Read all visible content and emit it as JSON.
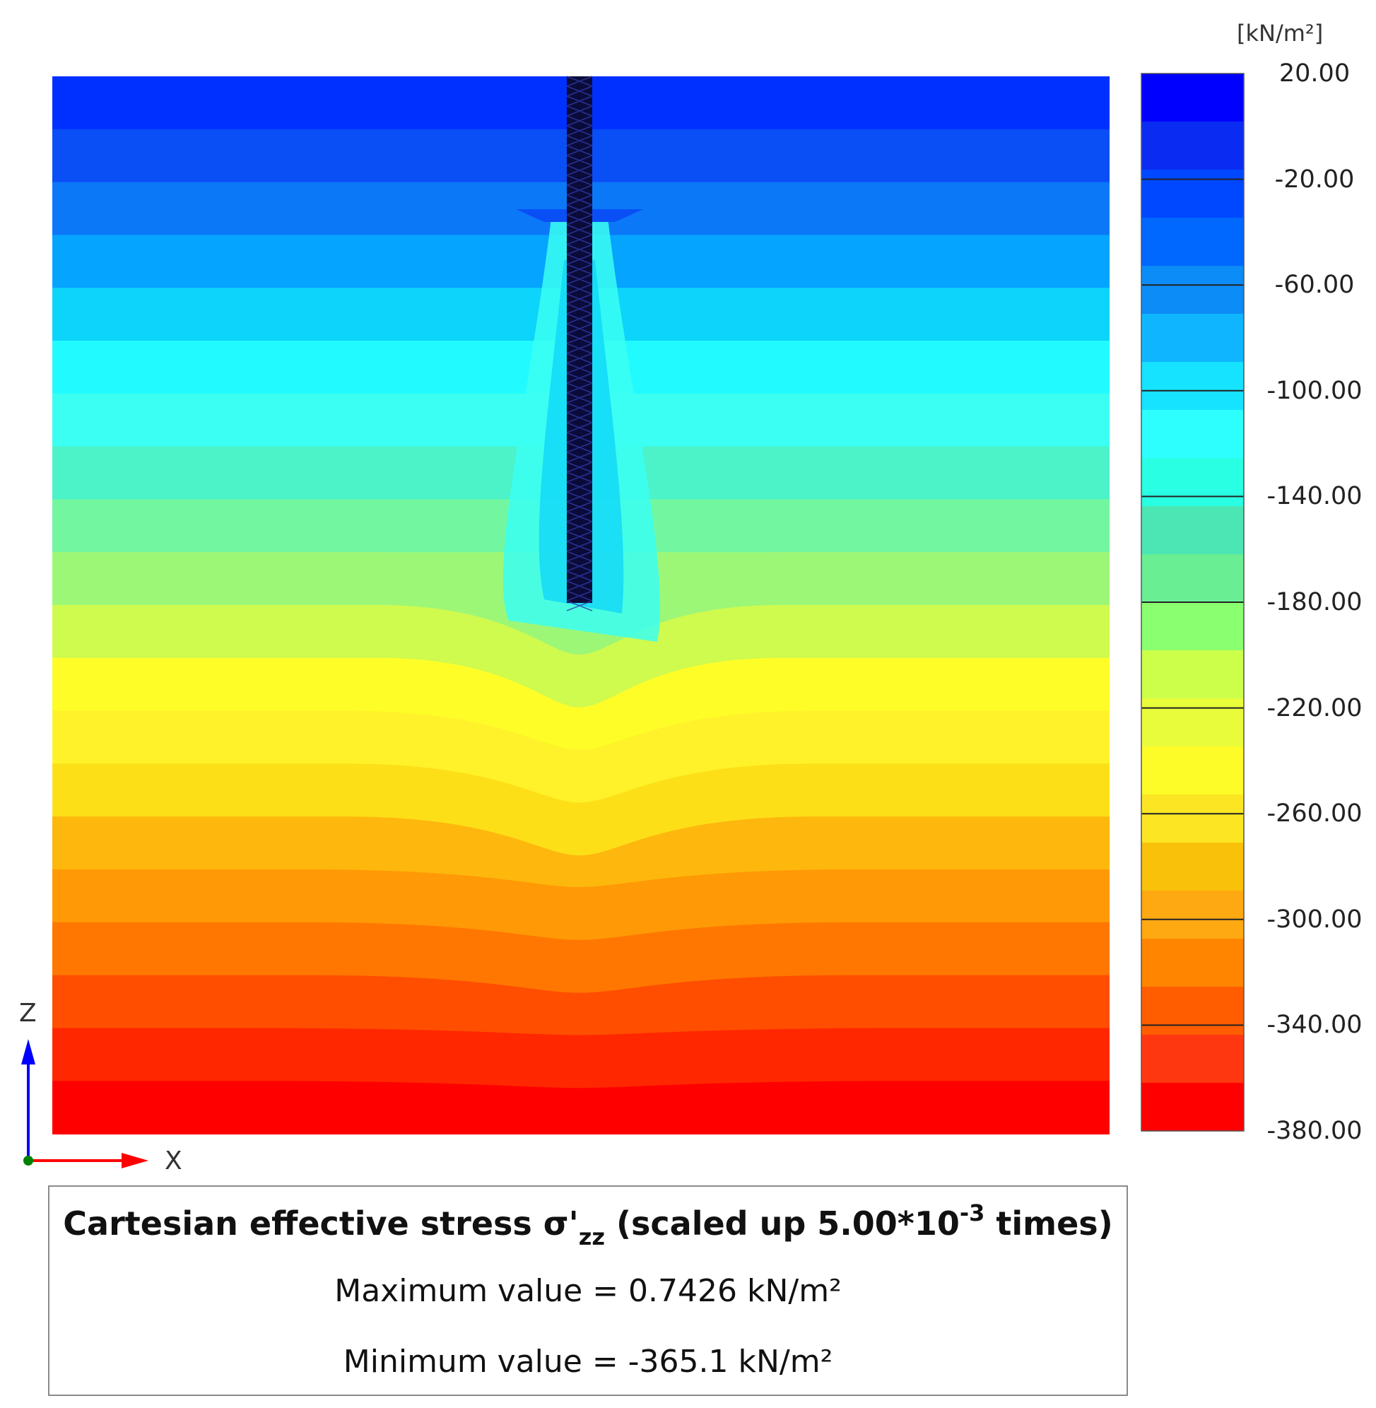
{
  "legend": {
    "unit": "[kN/m²]",
    "ticks": [
      "20.00",
      "-20.00",
      "-60.00",
      "-100.00",
      "-140.00",
      "-180.00",
      "-220.00",
      "-260.00",
      "-300.00",
      "-340.00",
      "-380.00"
    ],
    "band_colors": [
      "#0000ff",
      "#0a2cf2",
      "#0048ff",
      "#0067ff",
      "#0c8cf6",
      "#0fb6ff",
      "#16e3ff",
      "#2dffff",
      "#28ffe3",
      "#4be6b4",
      "#69ee93",
      "#8aff6f",
      "#cbff4a",
      "#e9fc3b",
      "#fdfb28",
      "#fce623",
      "#f9c10a",
      "#ffa912",
      "#ff8500",
      "#ff5d00",
      "#ff3710",
      "#ff0000"
    ]
  },
  "axes": {
    "x": "X",
    "z": "Z",
    "x_color": "#ff0000",
    "z_color": "#0000ff",
    "origin_color": "#008000"
  },
  "contour": {
    "band_colors_top_to_bottom": [
      "#0030ff",
      "#0a4ef6",
      "#0b78f8",
      "#05a4ff",
      "#0dd4fa",
      "#21fbff",
      "#3bfff2",
      "#4cf2c8",
      "#72f7a0",
      "#9df777",
      "#cffa4e",
      "#fffd28",
      "#fff22a",
      "#fddf18",
      "#feb70d",
      "#ff9905",
      "#ff7700",
      "#ff4e00",
      "#ff2700",
      "#ff0000"
    ],
    "pile_color": "#0b0b3a"
  },
  "info": {
    "title_main": "Cartesian effective stress σ'",
    "title_sub": "zz",
    "title_mid": " (scaled up 5.00*10",
    "title_exp": "-3",
    "title_end": " times)",
    "max_line": "Maximum value = 0.7426 kN/m²",
    "min_line": "Minimum value = -365.1 kN/m²"
  }
}
